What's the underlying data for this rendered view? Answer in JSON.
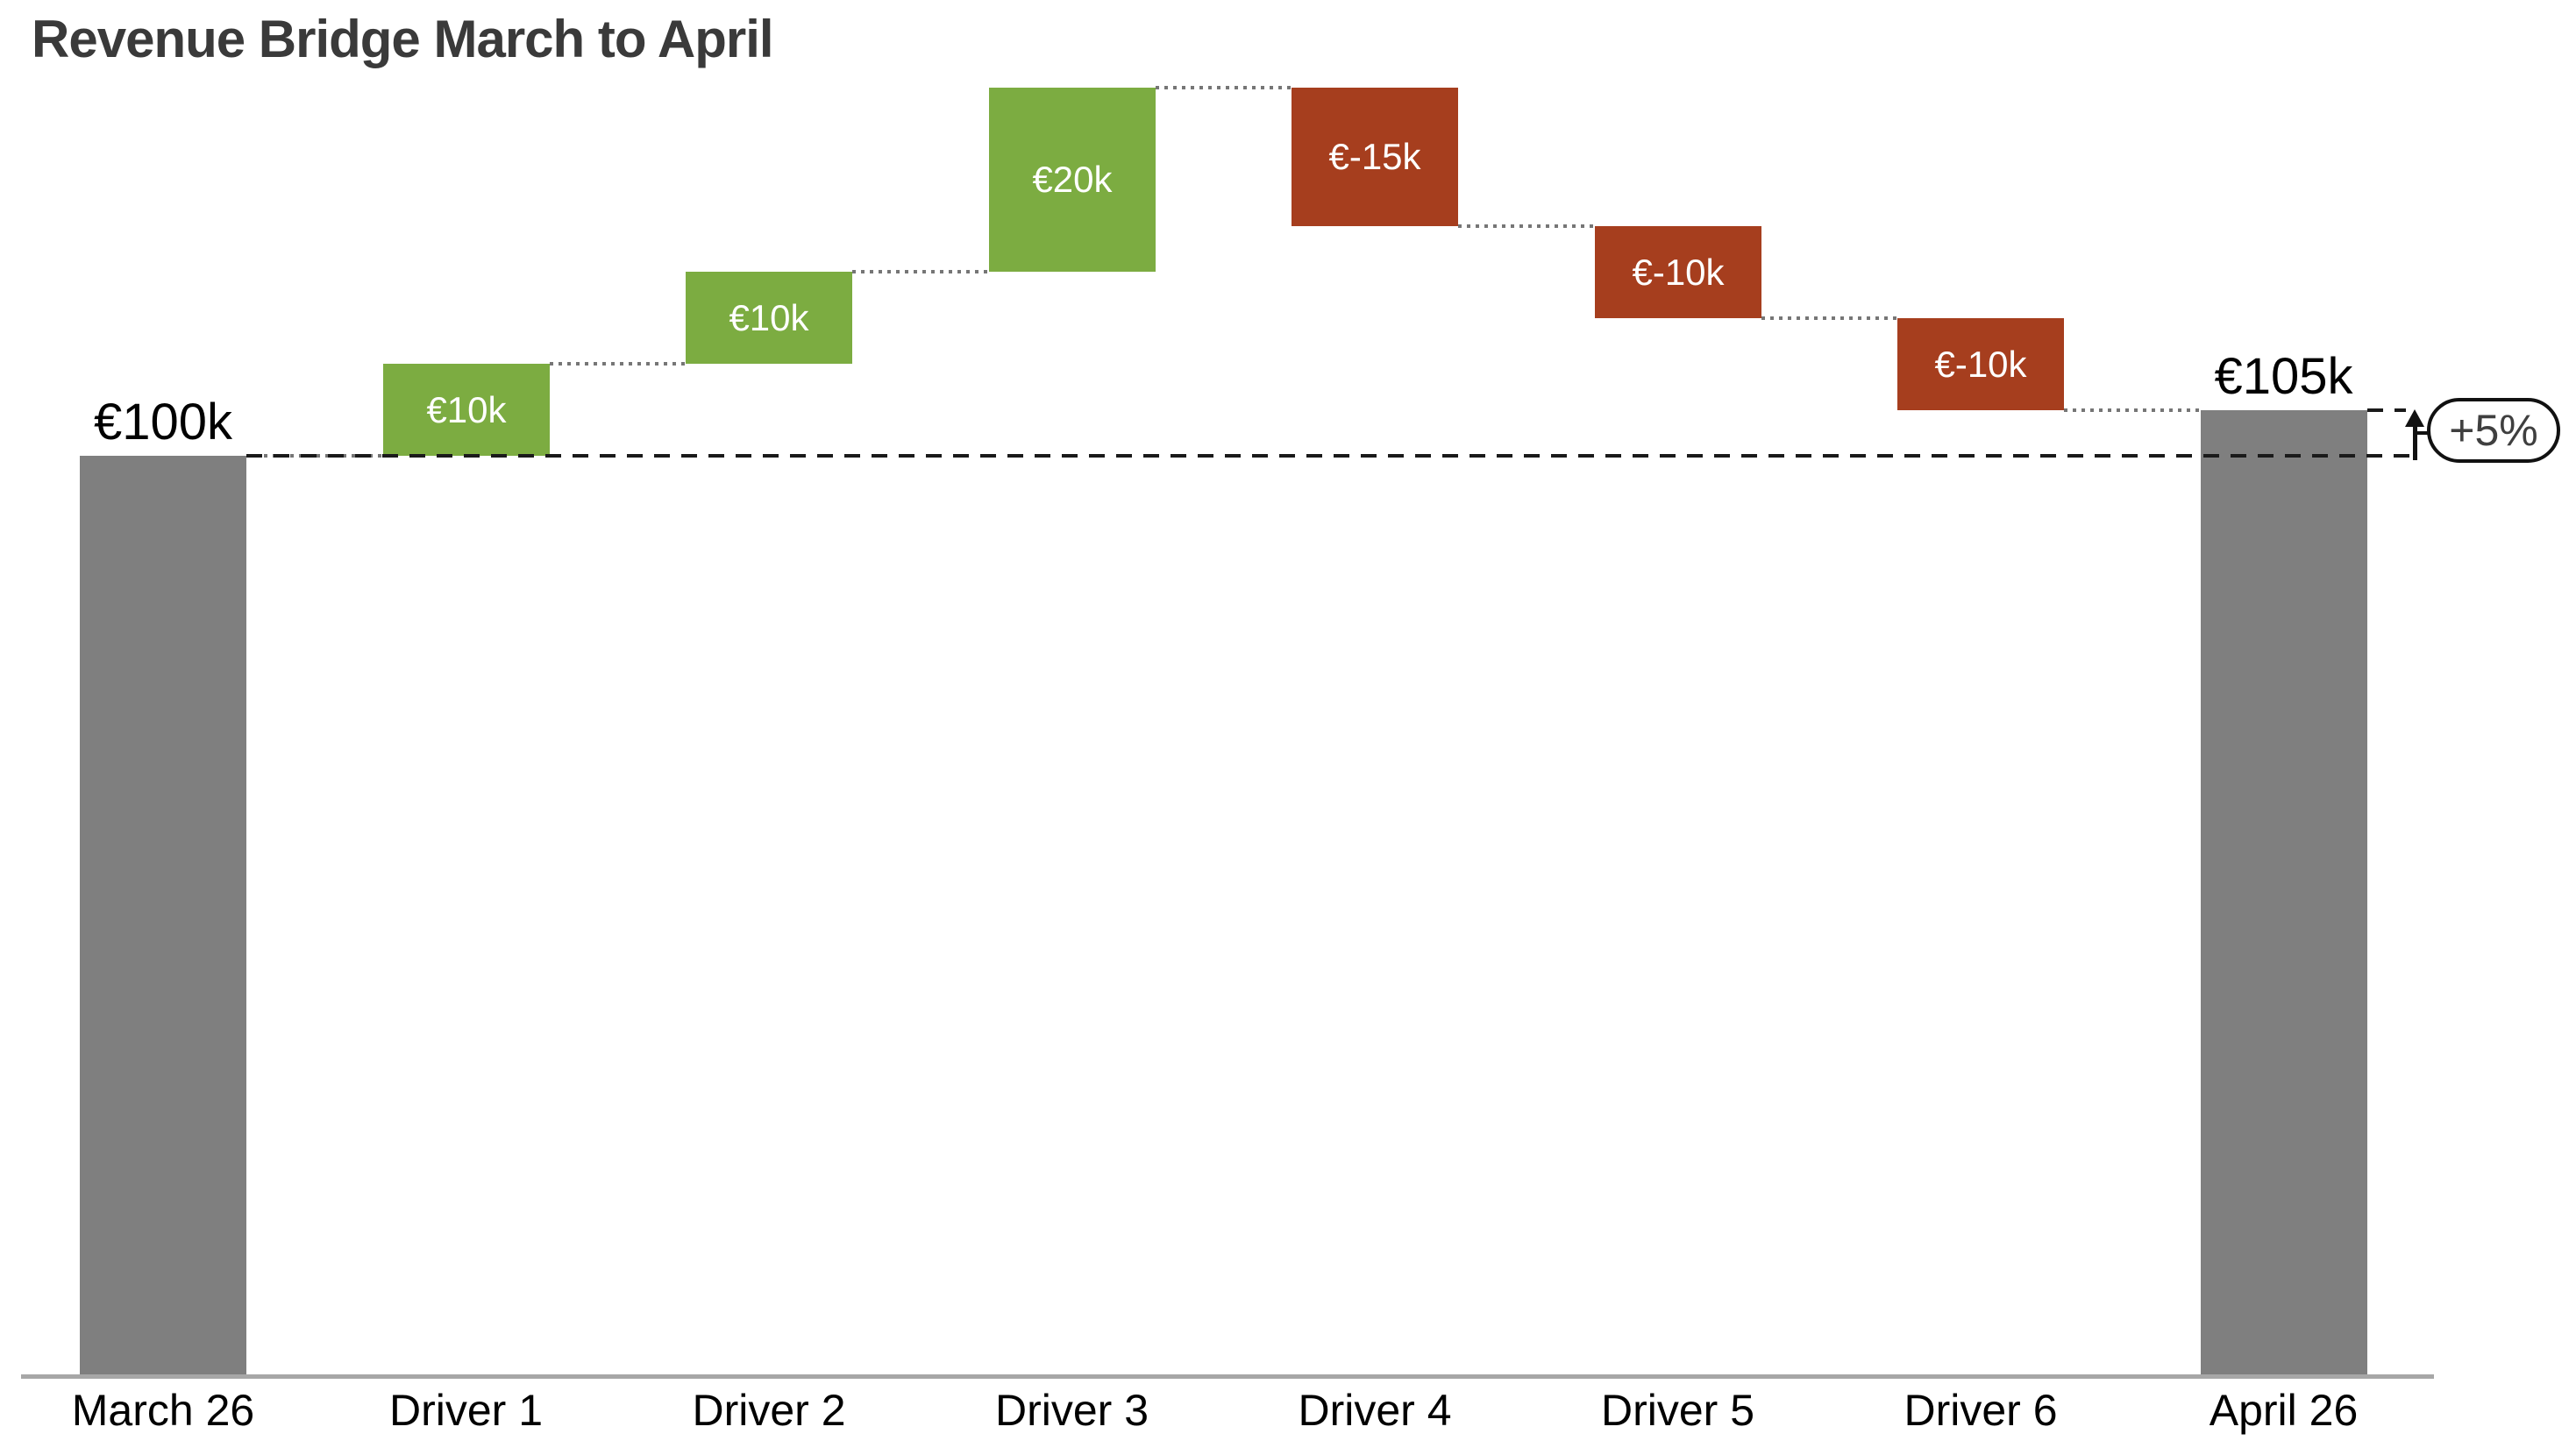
{
  "title": "Revenue Bridge March to April",
  "colors": {
    "total_bar": "#7f7f7f",
    "increase_bar": "#7cac41",
    "decrease_bar": "#a63e1e",
    "connector": "#767676",
    "reference_line": "#1a1a1a",
    "axis_line": "#a7a7a7",
    "title_text": "#3a3a3a",
    "bar_label_text": "#ffffff",
    "annotation_text": "#3f3f3f",
    "annotation_border": "#111111"
  },
  "chart_data": {
    "type": "bar",
    "variant": "waterfall",
    "title": "Revenue Bridge March to April",
    "unit": "EUR thousands",
    "categories": [
      "March 26",
      "Driver 1",
      "Driver 2",
      "Driver 3",
      "Driver 4",
      "Driver 5",
      "Driver 6",
      "April 26"
    ],
    "bars": [
      {
        "category": "March 26",
        "role": "total",
        "start": 0,
        "end": 100,
        "value": 100,
        "label": "€100k",
        "label_position": "above"
      },
      {
        "category": "Driver 1",
        "role": "increase",
        "start": 100,
        "end": 110,
        "value": 10,
        "label": "€10k",
        "label_position": "inside"
      },
      {
        "category": "Driver 2",
        "role": "increase",
        "start": 110,
        "end": 120,
        "value": 10,
        "label": "€10k",
        "label_position": "inside"
      },
      {
        "category": "Driver 3",
        "role": "increase",
        "start": 120,
        "end": 140,
        "value": 20,
        "label": "€20k",
        "label_position": "inside"
      },
      {
        "category": "Driver 4",
        "role": "decrease",
        "start": 140,
        "end": 125,
        "value": -15,
        "label": "€-15k",
        "label_position": "inside"
      },
      {
        "category": "Driver 5",
        "role": "decrease",
        "start": 125,
        "end": 115,
        "value": -10,
        "label": "€-10k",
        "label_position": "inside"
      },
      {
        "category": "Driver 6",
        "role": "decrease",
        "start": 115,
        "end": 105,
        "value": -10,
        "label": "€-10k",
        "label_position": "inside"
      },
      {
        "category": "April 26",
        "role": "total",
        "start": 0,
        "end": 105,
        "value": 105,
        "label": "€105k",
        "label_position": "above"
      }
    ],
    "reference_lines": [
      {
        "value": 100,
        "from_category": "March 26",
        "style": "dashed"
      },
      {
        "value": 105,
        "from_category": "April 26",
        "style": "dashed"
      }
    ],
    "annotation": {
      "label": "+5%",
      "shape": "pill",
      "arrow": "up",
      "from_value": 100,
      "to_value": 105
    },
    "ylim": [
      0,
      150
    ],
    "grid": false,
    "legend": false,
    "xlabel": "",
    "ylabel": ""
  }
}
